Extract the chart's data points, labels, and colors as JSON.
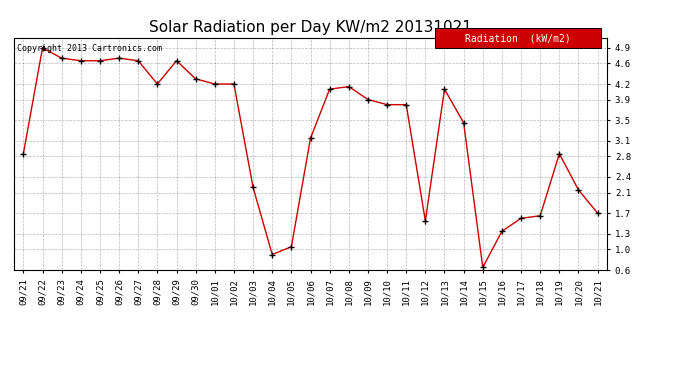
{
  "title": "Solar Radiation per Day KW/m2 20131021",
  "copyright_text": "Copyright 2013 Cartronics.com",
  "legend_label": "Radiation  (kW/m2)",
  "x_labels": [
    "09/21",
    "09/22",
    "09/23",
    "09/24",
    "09/25",
    "09/26",
    "09/27",
    "09/28",
    "09/29",
    "09/30",
    "10/01",
    "10/02",
    "10/03",
    "10/04",
    "10/05",
    "10/06",
    "10/07",
    "10/08",
    "10/09",
    "10/10",
    "10/11",
    "10/12",
    "10/13",
    "10/14",
    "10/15",
    "10/16",
    "10/17",
    "10/18",
    "10/19",
    "10/20",
    "10/21"
  ],
  "y_values": [
    2.85,
    4.9,
    4.7,
    4.65,
    4.65,
    4.7,
    4.65,
    4.2,
    4.65,
    4.3,
    4.2,
    4.2,
    2.2,
    0.9,
    1.05,
    3.15,
    4.1,
    4.15,
    3.9,
    3.8,
    3.8,
    1.55,
    4.1,
    3.45,
    0.65,
    1.35,
    1.6,
    1.65,
    2.85,
    2.15,
    1.7
  ],
  "line_color": "#cc0000",
  "marker_color": "#000000",
  "bg_color": "#ffffff",
  "grid_color": "#999999",
  "ylim": [
    0.6,
    5.1
  ],
  "yticks": [
    4.9,
    4.6,
    4.2,
    3.9,
    3.5,
    3.1,
    2.8,
    2.4,
    2.1,
    1.7,
    1.3,
    1.0,
    0.6
  ],
  "legend_bg": "#cc0000",
  "legend_text_color": "#ffffff",
  "title_fontsize": 11,
  "tick_fontsize": 6.5,
  "copyright_fontsize": 6,
  "legend_fontsize": 7
}
